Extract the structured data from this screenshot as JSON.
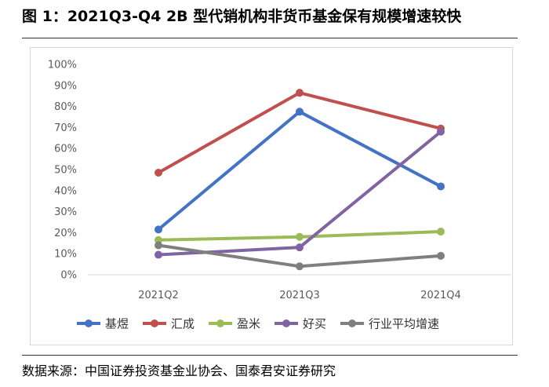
{
  "figure": {
    "title": "图 1：2021Q3-Q4 2B 型代销机构非货币基金保有规模增速较快",
    "source": "数据来源：中国证券投资基金业协会、国泰君安证券研究"
  },
  "chart_data": {
    "type": "line",
    "categories": [
      "2021Q2",
      "2021Q3",
      "2021Q4"
    ],
    "ylim": [
      0,
      100
    ],
    "yticks": [
      "0%",
      "10%",
      "20%",
      "30%",
      "40%",
      "50%",
      "60%",
      "70%",
      "80%",
      "90%",
      "100%"
    ],
    "grid": false,
    "legend_position": "bottom",
    "series": [
      {
        "name": "基煜",
        "color": "#4472C4",
        "values": [
          21.5,
          77.5,
          42
        ]
      },
      {
        "name": "汇成",
        "color": "#C0504D",
        "values": [
          48.5,
          86.5,
          69.5
        ]
      },
      {
        "name": "盈米",
        "color": "#9BBB59",
        "values": [
          16.5,
          18,
          20.5
        ]
      },
      {
        "name": "好买",
        "color": "#8064A2",
        "values": [
          9.5,
          13,
          68
        ]
      },
      {
        "name": "行业平均增速",
        "color": "#7F7F7F",
        "values": [
          14,
          4,
          9
        ]
      }
    ]
  }
}
